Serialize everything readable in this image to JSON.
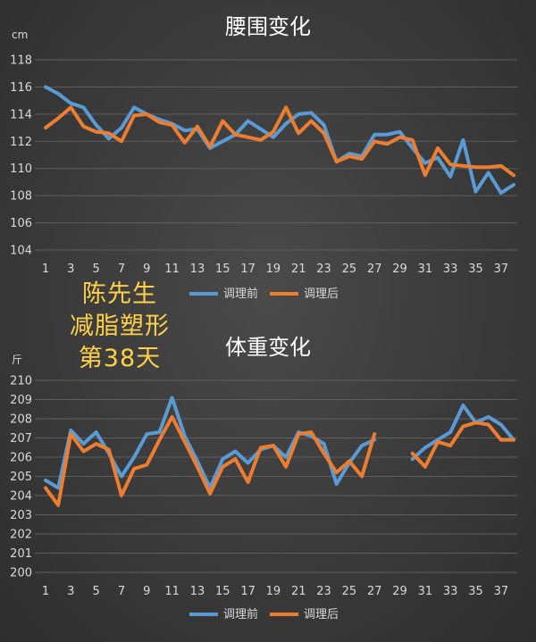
{
  "chart_data": [
    {
      "type": "line",
      "title": "腰围变化",
      "ylabel": "cm",
      "ylim": [
        104,
        118
      ],
      "yticks": [
        104,
        106,
        108,
        110,
        112,
        114,
        116,
        118
      ],
      "x": [
        1,
        2,
        3,
        4,
        5,
        6,
        7,
        8,
        9,
        10,
        11,
        12,
        13,
        14,
        15,
        16,
        17,
        18,
        19,
        20,
        21,
        22,
        23,
        24,
        25,
        26,
        27,
        28,
        29,
        30,
        31,
        32,
        33,
        34,
        35,
        36,
        37,
        38
      ],
      "xtick_labels": [
        1,
        3,
        5,
        7,
        9,
        11,
        13,
        15,
        17,
        19,
        21,
        23,
        25,
        27,
        29,
        31,
        33,
        35,
        37
      ],
      "grid": true,
      "legend_position": "bottom",
      "series": [
        {
          "name": "调理前",
          "color": "#5b9bd5",
          "values": [
            116.0,
            115.5,
            114.8,
            114.5,
            113.2,
            112.2,
            113.0,
            114.5,
            114.0,
            113.6,
            113.3,
            112.8,
            112.9,
            111.5,
            112.0,
            112.5,
            113.5,
            112.9,
            112.3,
            113.3,
            114.0,
            114.1,
            113.2,
            110.5,
            111.1,
            110.9,
            112.5,
            112.5,
            112.7,
            111.5,
            110.4,
            110.8,
            109.4,
            112.1,
            108.3,
            109.7,
            108.2,
            108.8
          ]
        },
        {
          "name": "调理后",
          "color": "#ed7d31",
          "values": [
            113.0,
            113.7,
            114.5,
            113.1,
            112.7,
            112.6,
            112.0,
            113.9,
            114.0,
            113.4,
            113.2,
            111.9,
            113.1,
            111.6,
            113.5,
            112.5,
            112.3,
            112.1,
            112.7,
            114.5,
            112.6,
            113.5,
            112.6,
            110.5,
            110.9,
            110.7,
            112.0,
            111.8,
            112.3,
            112.1,
            109.5,
            111.5,
            110.3,
            110.2,
            110.1,
            110.1,
            110.2,
            109.5
          ]
        }
      ]
    },
    {
      "type": "line",
      "title": "体重变化",
      "ylabel": "斤",
      "ylim": [
        200,
        210
      ],
      "yticks": [
        200,
        201,
        202,
        203,
        204,
        205,
        206,
        207,
        208,
        209,
        210
      ],
      "x": [
        1,
        2,
        3,
        4,
        5,
        6,
        7,
        8,
        9,
        10,
        11,
        12,
        13,
        14,
        15,
        16,
        17,
        18,
        19,
        20,
        21,
        22,
        23,
        24,
        25,
        26,
        27,
        28,
        29,
        30,
        31,
        32,
        33,
        34,
        35,
        36,
        37,
        38
      ],
      "xtick_labels": [
        1,
        3,
        5,
        7,
        9,
        11,
        13,
        15,
        17,
        19,
        21,
        23,
        25,
        27,
        29,
        31,
        33,
        35,
        37
      ],
      "grid": true,
      "legend_position": "bottom",
      "series": [
        {
          "name": "调理前",
          "color": "#5b9bd5",
          "values": [
            204.8,
            204.4,
            207.4,
            206.7,
            207.3,
            206.2,
            205.0,
            206.0,
            207.2,
            207.3,
            209.1,
            207.1,
            205.8,
            204.4,
            205.9,
            206.3,
            205.7,
            206.4,
            206.6,
            206.0,
            207.3,
            207.1,
            206.7,
            204.6,
            205.7,
            206.6,
            206.9,
            null,
            null,
            205.9,
            206.5,
            206.9,
            207.3,
            208.7,
            207.8,
            208.1,
            207.7,
            206.9
          ]
        },
        {
          "name": "调理后",
          "color": "#ed7d31",
          "values": [
            204.4,
            203.5,
            207.2,
            206.3,
            206.7,
            206.4,
            204.0,
            205.4,
            205.6,
            206.9,
            208.1,
            206.8,
            205.5,
            204.1,
            205.5,
            205.9,
            204.7,
            206.5,
            206.6,
            205.5,
            207.2,
            207.3,
            206.2,
            205.2,
            205.8,
            205.0,
            207.2,
            null,
            null,
            206.2,
            205.5,
            206.8,
            206.6,
            207.6,
            207.8,
            207.7,
            206.9,
            206.9
          ]
        }
      ]
    }
  ],
  "overlay": {
    "lines": [
      "陈先生",
      "减脂塑形",
      "第38天"
    ],
    "color": "#ffd24a"
  }
}
